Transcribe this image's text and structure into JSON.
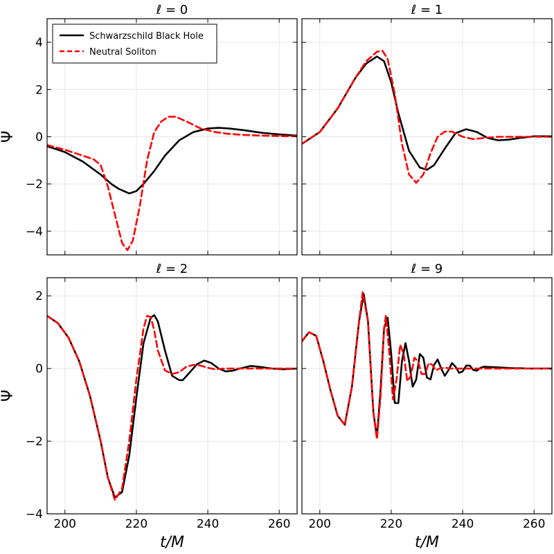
{
  "chart_data": {
    "type": "line",
    "layout": "2x2",
    "xlabel": "t/M",
    "ylabel": "Ψ",
    "xlim": [
      195,
      265
    ],
    "xticks": [
      200,
      220,
      240,
      260
    ],
    "grid": true,
    "legend": {
      "placement": "top-left",
      "panel": 0,
      "entries": [
        {
          "name": "Schwarzschild Black Hole",
          "color": "#000000",
          "style": "solid"
        },
        {
          "name": "Neutral Soliton",
          "color": "#ff0000",
          "style": "dashed"
        }
      ]
    },
    "colors": {
      "bh": "#000000",
      "soliton": "#ff0000"
    },
    "panels": [
      {
        "title": "ℓ = 0",
        "ylim": [
          -5,
          5
        ],
        "yticks": [
          -4,
          -2,
          0,
          2,
          4
        ],
        "series": [
          {
            "name": "Schwarzschild Black Hole",
            "x": [
              195,
              200,
              205,
              210,
              213,
              215,
              218,
              220,
              222,
              225,
              228,
              232,
              236,
              240,
              243,
              246,
              250,
              255,
              260,
              265
            ],
            "y": [
              -0.4,
              -0.65,
              -1.05,
              -1.6,
              -2.0,
              -2.2,
              -2.4,
              -2.3,
              -2.0,
              -1.45,
              -0.8,
              -0.15,
              0.2,
              0.35,
              0.38,
              0.35,
              0.28,
              0.17,
              0.1,
              0.05
            ]
          },
          {
            "name": "Neutral Soliton",
            "x": [
              195,
              200,
              205,
              208,
              210,
              212,
              214,
              216,
              217.5,
              219,
              221,
              223,
              225,
              227,
              229,
              231,
              234,
              238,
              242,
              246,
              250,
              255,
              260,
              265
            ],
            "y": [
              -0.35,
              -0.55,
              -0.8,
              -0.95,
              -1.2,
              -2.1,
              -3.3,
              -4.5,
              -4.8,
              -4.4,
              -2.9,
              -1.0,
              0.2,
              0.65,
              0.85,
              0.85,
              0.65,
              0.35,
              0.2,
              0.12,
              0.08,
              0.05,
              0.03,
              0.02
            ]
          }
        ]
      },
      {
        "title": "ℓ = 1",
        "ylim": [
          -5,
          5
        ],
        "yticks": [
          -4,
          -2,
          0,
          2,
          4
        ],
        "series": [
          {
            "name": "Schwarzschild Black Hole",
            "x": [
              195,
              200,
              205,
              210,
              213,
              216,
              218,
              220,
              222,
              225,
              228,
              230,
              232,
              235,
              238,
              241,
              244,
              247,
              250,
              253,
              256,
              260,
              265
            ],
            "y": [
              -0.3,
              0.2,
              1.2,
              2.5,
              3.1,
              3.4,
              3.2,
              2.3,
              1.0,
              -0.6,
              -1.3,
              -1.4,
              -1.2,
              -0.5,
              0.15,
              0.32,
              0.2,
              -0.05,
              -0.15,
              -0.12,
              -0.05,
              0.02,
              0.02
            ]
          },
          {
            "name": "Neutral Soliton",
            "x": [
              195,
              200,
              205,
              210,
              213,
              216,
              217.5,
              219,
              221,
              223,
              225,
              227,
              229,
              231,
              233,
              235,
              237,
              240,
              243,
              246,
              250,
              255,
              260,
              265
            ],
            "y": [
              -0.3,
              0.2,
              1.2,
              2.5,
              3.2,
              3.6,
              3.65,
              3.3,
              1.8,
              -0.3,
              -1.6,
              -1.95,
              -1.6,
              -0.7,
              0.0,
              0.22,
              0.22,
              0.0,
              -0.1,
              -0.05,
              0.0,
              0.0,
              0.0,
              0.0
            ]
          }
        ]
      },
      {
        "title": "ℓ = 2",
        "ylim": [
          -4,
          2.5
        ],
        "yticks": [
          -4,
          -2,
          0,
          2
        ],
        "series": [
          {
            "name": "Schwarzschild Black Hole",
            "x": [
              195,
              198,
              201,
              204,
              207,
              210,
              212,
              214,
              216,
              218,
              220,
              222,
              224,
              225,
              226,
              228,
              230,
              232,
              233,
              235,
              237,
              239,
              241,
              243,
              245,
              247,
              249,
              252,
              255,
              258,
              261,
              265
            ],
            "y": [
              1.45,
              1.25,
              0.85,
              0.2,
              -0.75,
              -2.0,
              -3.0,
              -3.55,
              -3.4,
              -2.4,
              -0.8,
              0.7,
              1.4,
              1.47,
              1.3,
              0.5,
              -0.2,
              -0.32,
              -0.32,
              -0.1,
              0.12,
              0.22,
              0.15,
              0.0,
              -0.08,
              -0.06,
              0.0,
              0.07,
              0.04,
              0.0,
              -0.02,
              0.0
            ]
          },
          {
            "name": "Neutral Soliton",
            "x": [
              195,
              198,
              201,
              204,
              207,
              210,
              212,
              214,
              216,
              218,
              220,
              222,
              223,
              224,
              225,
              226,
              228,
              230,
              232,
              234,
              236,
              238,
              240,
              242,
              245,
              250,
              255,
              260,
              265
            ],
            "y": [
              1.45,
              1.25,
              0.85,
              0.2,
              -0.75,
              -2.0,
              -3.0,
              -3.62,
              -3.3,
              -2.0,
              -0.3,
              1.1,
              1.45,
              1.42,
              1.05,
              0.5,
              -0.05,
              -0.15,
              -0.1,
              0.05,
              0.1,
              0.08,
              0.02,
              -0.02,
              0.0,
              0.0,
              0.0,
              0.0,
              0.0
            ]
          }
        ]
      },
      {
        "title": "ℓ = 9",
        "ylim": [
          -4,
          2.5
        ],
        "yticks": [
          -4,
          -2,
          0,
          2
        ],
        "series": [
          {
            "name": "Schwarzschild Black Hole",
            "x": [
              195,
              197,
              199,
              201,
              203,
              205,
              207,
              209,
              211,
              212.3,
              213.5,
              215,
              216,
              217,
              218,
              219,
              220,
              221,
              222,
              223,
              224,
              225,
              226,
              227,
              228,
              229,
              230,
              231,
              232,
              233,
              234,
              235,
              236,
              237,
              238,
              239,
              240,
              241,
              242,
              243,
              244,
              245,
              246,
              248,
              250,
              252,
              254,
              256,
              258,
              260,
              265
            ],
            "y": [
              0.75,
              1.0,
              0.9,
              0.2,
              -0.6,
              -1.3,
              -1.55,
              -0.5,
              1.3,
              2.05,
              1.3,
              -1.2,
              -1.9,
              -0.6,
              1.1,
              1.4,
              0.4,
              -0.95,
              -0.95,
              0.2,
              0.7,
              0.2,
              -0.5,
              -0.3,
              0.4,
              0.3,
              -0.25,
              -0.3,
              0.1,
              0.25,
              0.0,
              -0.2,
              -0.05,
              0.15,
              0.05,
              -0.12,
              -0.08,
              0.08,
              0.08,
              -0.04,
              -0.06,
              0.02,
              0.05,
              0.04,
              0.03,
              0.02,
              0.01,
              0.01,
              0.0,
              0.0,
              0.0
            ]
          },
          {
            "name": "Neutral Soliton",
            "x": [
              195,
              197,
              199,
              201,
              203,
              205,
              207,
              209,
              211,
              212,
              213.5,
              215,
              216,
              217,
              218,
              218.5,
              219.5,
              220.5,
              221.5,
              222.5,
              223.5,
              224.5,
              225.5,
              226.5,
              227.5,
              228.5,
              229.5,
              230.5,
              231.5,
              232.5,
              233.5,
              235,
              237,
              240,
              245,
              250,
              255,
              260,
              265
            ],
            "y": [
              0.75,
              1.0,
              0.9,
              0.2,
              -0.6,
              -1.3,
              -1.55,
              -0.5,
              1.3,
              2.1,
              1.3,
              -1.2,
              -1.95,
              -0.8,
              1.1,
              1.45,
              0.4,
              -0.85,
              -0.3,
              0.65,
              0.4,
              -0.35,
              -0.2,
              0.3,
              0.2,
              -0.15,
              -0.15,
              0.15,
              0.1,
              -0.05,
              0.0,
              0.02,
              0.0,
              0.0,
              0.0,
              0.0,
              0.0,
              0.0,
              0.0
            ]
          }
        ]
      }
    ]
  }
}
